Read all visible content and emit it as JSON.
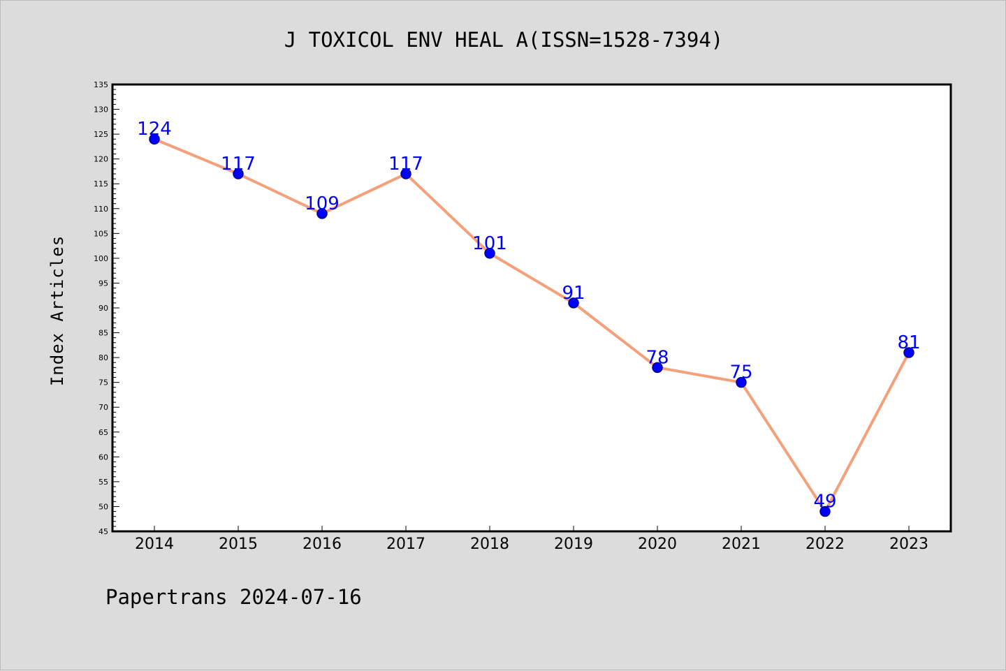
{
  "colors": {
    "background": "#dcdcdc",
    "plot_background": "#ffffff",
    "line": "#f4a07a",
    "marker_fill": "#0000ff",
    "marker_stroke": "#00008b",
    "data_label": "#0000ff"
  },
  "chart_data": {
    "type": "line",
    "title": "J TOXICOL ENV HEAL A(ISSN=1528-7394)",
    "xlabel": "",
    "ylabel": "Index Articles",
    "footer": "Papertrans 2024-07-16",
    "categories": [
      "2014",
      "2015",
      "2016",
      "2017",
      "2018",
      "2019",
      "2020",
      "2021",
      "2022",
      "2023"
    ],
    "series": [
      {
        "values": [
          124,
          117,
          109,
          117,
          101,
          91,
          78,
          75,
          49,
          81
        ]
      }
    ],
    "ylim": [
      45,
      135
    ],
    "yticks": [
      45,
      50,
      55,
      60,
      65,
      70,
      75,
      80,
      85,
      90,
      95,
      100,
      105,
      110,
      115,
      120,
      125,
      130,
      135
    ],
    "grid": false,
    "legend": "none"
  }
}
